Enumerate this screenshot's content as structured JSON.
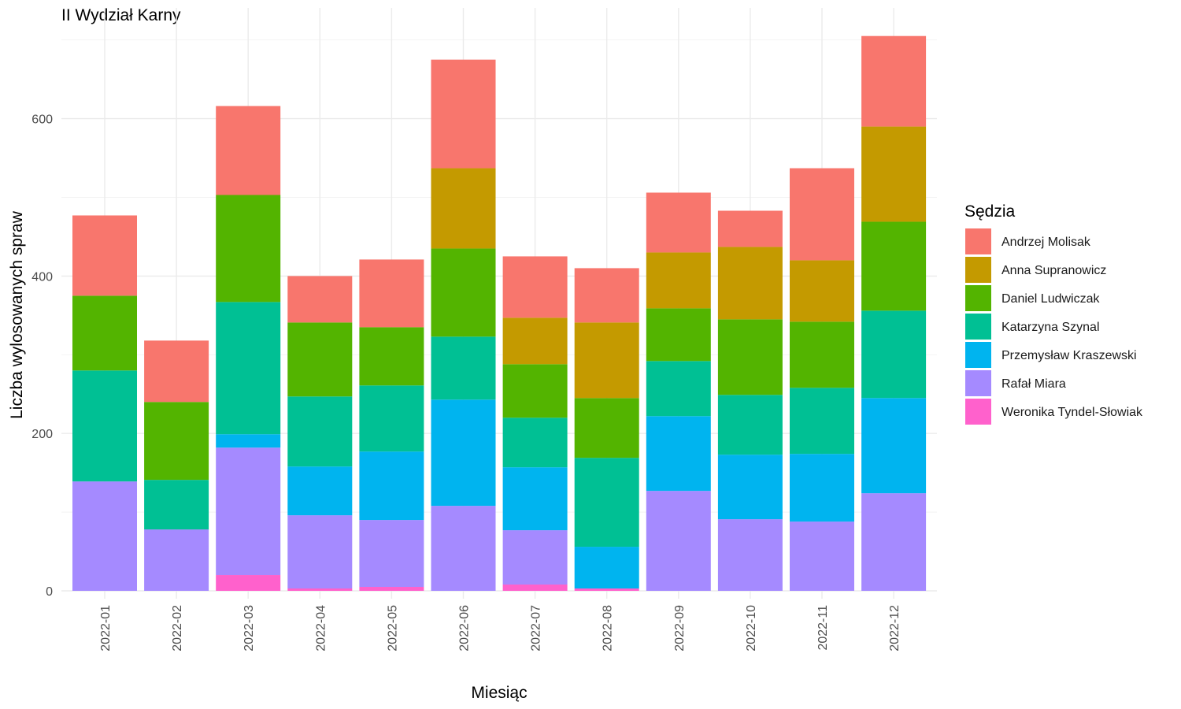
{
  "chart_data": {
    "type": "bar",
    "stacked": true,
    "title": "II Wydział Karny",
    "xlabel": "Miesiąc",
    "ylabel": "Liczba wylosowanych spraw",
    "ylim": [
      -15,
      705
    ],
    "yticks": [
      0,
      200,
      400,
      600
    ],
    "grid": true,
    "legend_title": "Sędzia",
    "legend_position": "right",
    "categories": [
      "2022-01",
      "2022-02",
      "2022-03",
      "2022-04",
      "2022-05",
      "2022-06",
      "2022-07",
      "2022-08",
      "2022-09",
      "2022-10",
      "2022-11",
      "2022-12"
    ],
    "series": [
      {
        "name": "Weronika Tyndel-Słowiak",
        "color": "#FF61CC",
        "values": [
          0,
          0,
          20,
          3,
          5,
          0,
          8,
          3,
          0,
          0,
          0,
          0
        ]
      },
      {
        "name": "Rafał Miara",
        "color": "#A58AFF",
        "values": [
          139,
          78,
          162,
          93,
          85,
          108,
          69,
          0,
          127,
          91,
          88,
          124
        ]
      },
      {
        "name": "Przemysław Kraszewski",
        "color": "#00B4EF",
        "values": [
          0,
          0,
          17,
          62,
          87,
          135,
          80,
          53,
          95,
          82,
          86,
          121
        ]
      },
      {
        "name": "Katarzyna Szynal",
        "color": "#00C094",
        "values": [
          141,
          63,
          168,
          89,
          84,
          80,
          63,
          113,
          70,
          76,
          84,
          111
        ]
      },
      {
        "name": "Daniel Ludwiczak",
        "color": "#53B400",
        "values": [
          95,
          99,
          136,
          94,
          74,
          112,
          68,
          76,
          67,
          96,
          84,
          113
        ]
      },
      {
        "name": "Anna Supranowicz",
        "color": "#C49A00",
        "values": [
          0,
          0,
          0,
          0,
          0,
          102,
          59,
          96,
          71,
          92,
          78,
          121
        ]
      },
      {
        "name": "Andrzej Molisak",
        "color": "#F8766D",
        "values": [
          102,
          78,
          113,
          59,
          86,
          138,
          78,
          69,
          76,
          46,
          117,
          115
        ]
      }
    ],
    "legend_order": [
      "Andrzej Molisak",
      "Anna Supranowicz",
      "Daniel Ludwiczak",
      "Katarzyna Szynal",
      "Przemysław Kraszewski",
      "Rafał Miara",
      "Weronika Tyndel-Słowiak"
    ]
  }
}
